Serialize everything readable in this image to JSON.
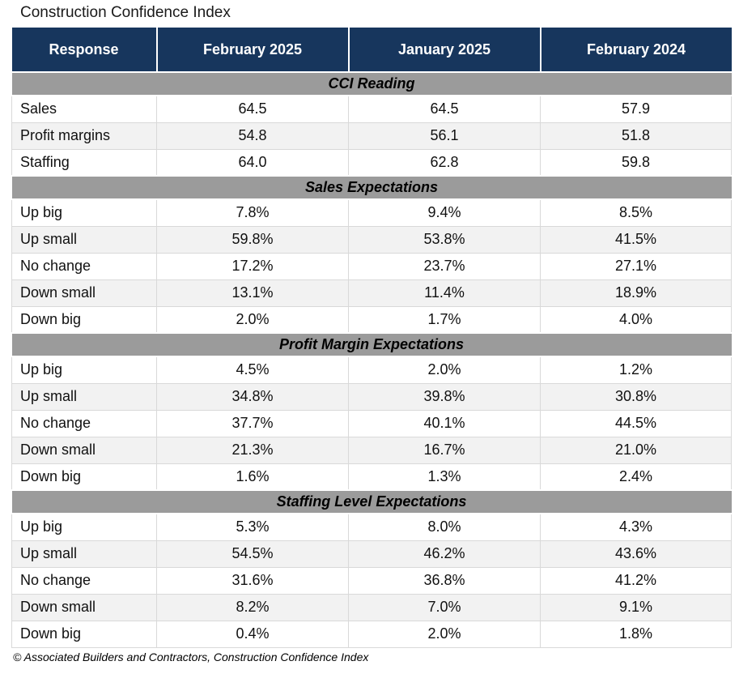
{
  "page": {
    "title": "Construction Confidence Index",
    "footer": "© Associated Builders and Contractors, Construction Confidence Index"
  },
  "colors": {
    "header_bg": "#17365D",
    "header_text": "#FFFFFF",
    "section_bg": "#9B9B9B",
    "row_alt_bg": "#F2F2F2",
    "grid_line": "#D9D9D9"
  },
  "table": {
    "columns": [
      "Response",
      "February 2025",
      "January 2025",
      "February 2024"
    ],
    "sections": [
      {
        "title": "CCI Reading",
        "rows": [
          {
            "label": "Sales",
            "values": [
              "64.5",
              "64.5",
              "57.9"
            ]
          },
          {
            "label": "Profit margins",
            "values": [
              "54.8",
              "56.1",
              "51.8"
            ]
          },
          {
            "label": "Staffing",
            "values": [
              "64.0",
              "62.8",
              "59.8"
            ]
          }
        ]
      },
      {
        "title": "Sales Expectations",
        "rows": [
          {
            "label": "Up big",
            "values": [
              "7.8%",
              "9.4%",
              "8.5%"
            ]
          },
          {
            "label": "Up small",
            "values": [
              "59.8%",
              "53.8%",
              "41.5%"
            ]
          },
          {
            "label": "No change",
            "values": [
              "17.2%",
              "23.7%",
              "27.1%"
            ]
          },
          {
            "label": "Down small",
            "values": [
              "13.1%",
              "11.4%",
              "18.9%"
            ]
          },
          {
            "label": "Down big",
            "values": [
              "2.0%",
              "1.7%",
              "4.0%"
            ]
          }
        ]
      },
      {
        "title": "Profit Margin Expectations",
        "rows": [
          {
            "label": "Up big",
            "values": [
              "4.5%",
              "2.0%",
              "1.2%"
            ]
          },
          {
            "label": "Up small",
            "values": [
              "34.8%",
              "39.8%",
              "30.8%"
            ]
          },
          {
            "label": "No change",
            "values": [
              "37.7%",
              "40.1%",
              "44.5%"
            ]
          },
          {
            "label": "Down small",
            "values": [
              "21.3%",
              "16.7%",
              "21.0%"
            ]
          },
          {
            "label": "Down big",
            "values": [
              "1.6%",
              "1.3%",
              "2.4%"
            ]
          }
        ]
      },
      {
        "title": "Staffing Level Expectations",
        "rows": [
          {
            "label": "Up big",
            "values": [
              "5.3%",
              "8.0%",
              "4.3%"
            ]
          },
          {
            "label": "Up small",
            "values": [
              "54.5%",
              "46.2%",
              "43.6%"
            ]
          },
          {
            "label": "No change",
            "values": [
              "31.6%",
              "36.8%",
              "41.2%"
            ]
          },
          {
            "label": "Down small",
            "values": [
              "8.2%",
              "7.0%",
              "9.1%"
            ]
          },
          {
            "label": "Down big",
            "values": [
              "0.4%",
              "2.0%",
              "1.8%"
            ]
          }
        ]
      }
    ]
  },
  "chart_data": {
    "type": "table",
    "title": "Construction Confidence Index",
    "columns": [
      "Response",
      "February 2025",
      "January 2025",
      "February 2024"
    ],
    "sections": [
      {
        "title": "CCI Reading",
        "unit": "index",
        "rows": [
          {
            "response": "Sales",
            "feb_2025": 64.5,
            "jan_2025": 64.5,
            "feb_2024": 57.9
          },
          {
            "response": "Profit margins",
            "feb_2025": 54.8,
            "jan_2025": 56.1,
            "feb_2024": 51.8
          },
          {
            "response": "Staffing",
            "feb_2025": 64.0,
            "jan_2025": 62.8,
            "feb_2024": 59.8
          }
        ]
      },
      {
        "title": "Sales Expectations",
        "unit": "percent",
        "rows": [
          {
            "response": "Up big",
            "feb_2025": 7.8,
            "jan_2025": 9.4,
            "feb_2024": 8.5
          },
          {
            "response": "Up small",
            "feb_2025": 59.8,
            "jan_2025": 53.8,
            "feb_2024": 41.5
          },
          {
            "response": "No change",
            "feb_2025": 17.2,
            "jan_2025": 23.7,
            "feb_2024": 27.1
          },
          {
            "response": "Down small",
            "feb_2025": 13.1,
            "jan_2025": 11.4,
            "feb_2024": 18.9
          },
          {
            "response": "Down big",
            "feb_2025": 2.0,
            "jan_2025": 1.7,
            "feb_2024": 4.0
          }
        ]
      },
      {
        "title": "Profit Margin Expectations",
        "unit": "percent",
        "rows": [
          {
            "response": "Up big",
            "feb_2025": 4.5,
            "jan_2025": 2.0,
            "feb_2024": 1.2
          },
          {
            "response": "Up small",
            "feb_2025": 34.8,
            "jan_2025": 39.8,
            "feb_2024": 30.8
          },
          {
            "response": "No change",
            "feb_2025": 37.7,
            "jan_2025": 40.1,
            "feb_2024": 44.5
          },
          {
            "response": "Down small",
            "feb_2025": 21.3,
            "jan_2025": 16.7,
            "feb_2024": 21.0
          },
          {
            "response": "Down big",
            "feb_2025": 1.6,
            "jan_2025": 1.3,
            "feb_2024": 2.4
          }
        ]
      },
      {
        "title": "Staffing Level Expectations",
        "unit": "percent",
        "rows": [
          {
            "response": "Up big",
            "feb_2025": 5.3,
            "jan_2025": 8.0,
            "feb_2024": 4.3
          },
          {
            "response": "Up small",
            "feb_2025": 54.5,
            "jan_2025": 46.2,
            "feb_2024": 43.6
          },
          {
            "response": "No change",
            "feb_2025": 31.6,
            "jan_2025": 36.8,
            "feb_2024": 41.2
          },
          {
            "response": "Down small",
            "feb_2025": 8.2,
            "jan_2025": 7.0,
            "feb_2024": 9.1
          },
          {
            "response": "Down big",
            "feb_2025": 0.4,
            "jan_2025": 2.0,
            "feb_2024": 1.8
          }
        ]
      }
    ],
    "source": "© Associated Builders and Contractors, Construction Confidence Index"
  }
}
